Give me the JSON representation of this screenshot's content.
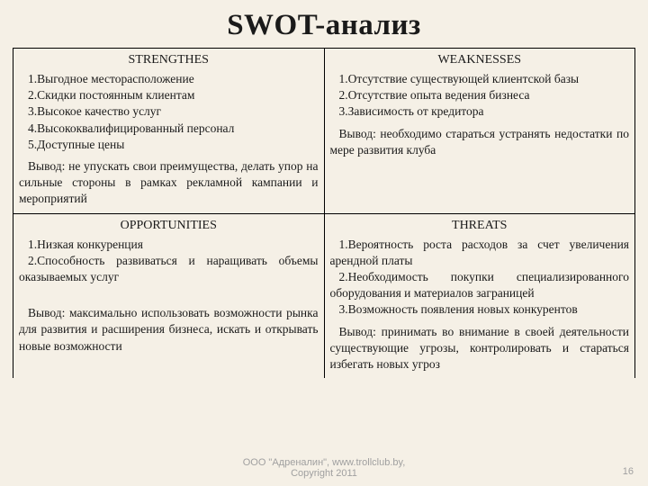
{
  "title": "SWOT-анализ",
  "strengths": {
    "heading": "STRENGTHES",
    "items": [
      "1.Выгодное месторасположение",
      "2.Скидки постоянным клиентам",
      "3.Высокое качество услуг",
      "4.Высококвалифицированный персонал",
      "5.Доступные цены"
    ],
    "conclusion": "Вывод: не упускать свои преимущества, делать упор на сильные стороны в рамках рекламной кампании и мероприятий"
  },
  "weaknesses": {
    "heading": "WEAKNESSES",
    "items": [
      "1.Отсутствие существующей клиентской базы",
      "2.Отсутствие опыта ведения бизнеса",
      "3.Зависимость от кредитора"
    ],
    "conclusion": "Вывод: необходимо стараться устранять недостатки по мере развития клуба"
  },
  "opportunities": {
    "heading": "OPPORTUNITIES",
    "items_text": "1.Низкая конкуренция\n2.Способность развиваться и наращивать объемы оказываемых услуг",
    "conclusion": "Вывод: максимально использовать возможности рынка для развития и расширения бизнеса, искать и открывать новые возможности"
  },
  "threats": {
    "heading": "THREATS",
    "items_text": "1.Вероятность роста расходов за счет увеличения арендной платы\n2.Необходимость покупки специализированного оборудования и материалов заграницей\n3.Возможность появления новых конкурентов",
    "conclusion": "Вывод: принимать во внимание в своей деятельности существующие угрозы, контролировать и стараться избегать новых угроз"
  },
  "footer_line1": "ООО \"Адреналин\", www.trollclub.by,",
  "footer_line2": "Copyright 2011",
  "page_number": "16",
  "colors": {
    "background": "#f5f0e6",
    "text": "#1a1a1a",
    "border": "#000000",
    "footer": "#a0a0a0"
  }
}
